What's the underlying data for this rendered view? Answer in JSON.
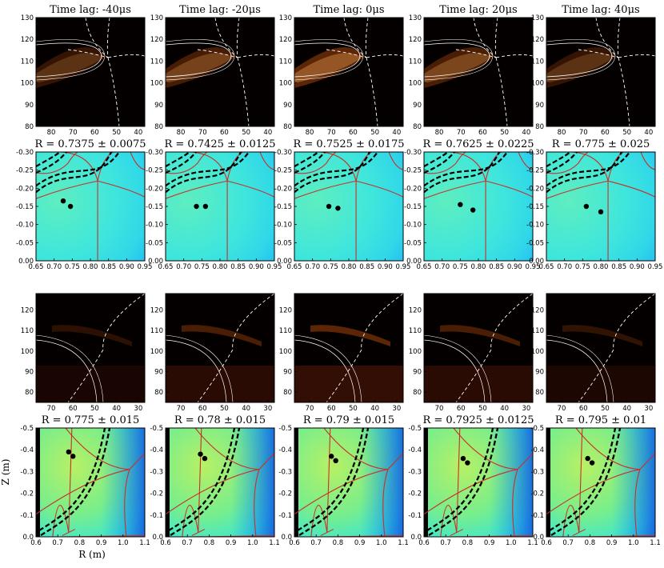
{
  "figure": {
    "ylabel": "Z (m)",
    "xlabel": "R (m)"
  },
  "colors": {
    "frame": "#000000",
    "separatrix": "#c8302a",
    "trajectory": "#000000",
    "camera_background": "#050000",
    "camera_glow": "#ff6a10",
    "flux_low": "#48e8dc",
    "flux_high": "#b8f060",
    "flux_edge": "#1a78e8"
  },
  "chart_data": [
    {
      "type": "heatmap",
      "row": 0,
      "panels": [
        {
          "title": "Time lag: -40μs"
        },
        {
          "title": "Time lag: -20μs"
        },
        {
          "title": "Time lag: 0μs"
        },
        {
          "title": "Time lag: 20μs"
        },
        {
          "title": "Time lag: 40μs"
        }
      ],
      "xlim": [
        87,
        37
      ],
      "ylim": [
        130,
        80
      ],
      "xticks": [
        80,
        70,
        60,
        50,
        40
      ],
      "yticks": [
        80,
        90,
        100,
        110,
        120,
        130
      ],
      "intensity": [
        0.55,
        0.75,
        1.0,
        0.8,
        0.55
      ]
    },
    {
      "type": "heatmap",
      "row": 1,
      "panels": [
        {
          "title": "R = 0.7375 ± 0.0075"
        },
        {
          "title": "R = 0.7425 ± 0.0125"
        },
        {
          "title": "R = 0.7525 ± 0.0175"
        },
        {
          "title": "R = 0.7625 ± 0.0225"
        },
        {
          "title": "R = 0.775 ± 0.025"
        }
      ],
      "xlim": [
        0.65,
        0.95
      ],
      "ylim": [
        -0.3,
        0.0
      ],
      "xticks": [
        "0.65",
        "0.70",
        "0.75",
        "0.80",
        "0.85",
        "0.90",
        "0.95"
      ],
      "yticks": [
        "0.00",
        "-0.05",
        "-0.10",
        "-0.15",
        "-0.20",
        "-0.25",
        "-0.30"
      ],
      "xpoint": [
        0.82,
        -0.22
      ],
      "markers": [
        [
          [
            0.725,
            -0.165
          ],
          [
            0.745,
            -0.15
          ]
        ],
        [
          [
            0.735,
            -0.15
          ],
          [
            0.76,
            -0.15
          ]
        ],
        [
          [
            0.745,
            -0.15
          ],
          [
            0.77,
            -0.145
          ]
        ],
        [
          [
            0.75,
            -0.155
          ],
          [
            0.785,
            -0.14
          ]
        ],
        [
          [
            0.76,
            -0.15
          ],
          [
            0.8,
            -0.135
          ]
        ]
      ]
    },
    {
      "type": "heatmap",
      "row": 2,
      "panels": [
        {
          "title": ""
        },
        {
          "title": ""
        },
        {
          "title": ""
        },
        {
          "title": ""
        },
        {
          "title": ""
        }
      ],
      "xlim": [
        77,
        27
      ],
      "ylim": [
        128,
        75
      ],
      "xticks": [
        70,
        60,
        50,
        40,
        30
      ],
      "yticks": [
        80,
        90,
        100,
        110,
        120
      ],
      "intensity": [
        0.45,
        0.8,
        1.0,
        0.8,
        0.5
      ]
    },
    {
      "type": "heatmap",
      "row": 3,
      "panels": [
        {
          "title": "R = 0.775 ± 0.015"
        },
        {
          "title": "R = 0.78 ± 0.015"
        },
        {
          "title": "R = 0.79 ± 0.015"
        },
        {
          "title": "R = 0.7925 ± 0.0125"
        },
        {
          "title": "R = 0.795 ± 0.01"
        }
      ],
      "xlim": [
        0.6,
        1.1
      ],
      "ylim": [
        -0.5,
        0.0
      ],
      "xticks": [
        "0.6",
        "0.7",
        "0.8",
        "0.9",
        "1.0",
        "1.1"
      ],
      "yticks": [
        "0.0",
        "-0.1",
        "-0.2",
        "-0.3",
        "-0.4",
        "-0.5"
      ],
      "xpoint": [
        1.03,
        -0.31
      ],
      "opoint": [
        0.75,
        -0.02
      ],
      "markers": [
        [
          [
            0.75,
            -0.39
          ],
          [
            0.77,
            -0.37
          ]
        ],
        [
          [
            0.76,
            -0.38
          ],
          [
            0.78,
            -0.36
          ]
        ],
        [
          [
            0.77,
            -0.37
          ],
          [
            0.79,
            -0.35
          ]
        ],
        [
          [
            0.78,
            -0.36
          ],
          [
            0.8,
            -0.34
          ]
        ],
        [
          [
            0.79,
            -0.36
          ],
          [
            0.81,
            -0.34
          ]
        ]
      ]
    }
  ]
}
